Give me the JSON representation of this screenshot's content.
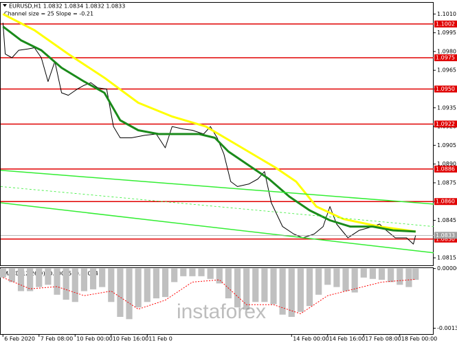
{
  "chart_data": [
    {
      "type": "line",
      "title": "EURUSD,H1  1.0832 1.0834 1.0832 1.0833",
      "subtitle": "Channel size = 25 Slope = -0.21",
      "watermark": "instaforex",
      "xlim": [
        -1,
        191
      ],
      "xticks": [
        {
          "value": 0,
          "label": "6 Feb 2020"
        },
        {
          "value": 16,
          "label": "7 Feb 08:00"
        },
        {
          "value": 32,
          "label": "10 Feb 00:00"
        },
        {
          "value": 48,
          "label": "10 Feb 16:00"
        },
        {
          "value": 64,
          "label": "11 Feb 0"
        },
        {
          "value": 128,
          "label": "14 Feb 00:00"
        },
        {
          "value": 144,
          "label": "14 Feb 16:00"
        },
        {
          "value": 160,
          "label": "17 Feb 08:00"
        },
        {
          "value": 176,
          "label": "18 Feb 00:00"
        }
      ],
      "ylim": [
        1.0809,
        1.1019
      ],
      "yticks": [
        {
          "value": 1.101,
          "label": "1.1010"
        },
        1.0995,
        {
          "value": 1.098,
          "label": "1.0980"
        },
        1.0965,
        {
          "value": 1.095,
          "label": "1.0950"
        },
        1.0935,
        {
          "value": 1.092,
          "label": "1.0920"
        },
        1.0905,
        {
          "value": 1.089,
          "label": "1.0890"
        },
        1.0875,
        {
          "value": 1.086,
          "label": "1.0860"
        },
        1.0845,
        {
          "value": 1.083,
          "label": "1.0830"
        },
        1.0815
      ],
      "series": [
        {
          "color": "#000000",
          "width": 1,
          "x": [
            0,
            1,
            4,
            7,
            11,
            14,
            17,
            20,
            23,
            26,
            29,
            33,
            36,
            39,
            42,
            46,
            49,
            52,
            57,
            63,
            68,
            72,
            75,
            80,
            84,
            89,
            92,
            95,
            98,
            101,
            104,
            109,
            113,
            116,
            119,
            124,
            129,
            133,
            138,
            142,
            145,
            148,
            153,
            158,
            164,
            167,
            170,
            174,
            179,
            182,
            183
          ],
          "values": [
            1.1003,
            1.0978,
            1.0975,
            1.0981,
            1.0982,
            1.0983,
            1.0975,
            1.0956,
            1.0972,
            1.0947,
            1.0945,
            1.095,
            1.0953,
            1.0955,
            1.0951,
            1.095,
            1.092,
            1.0911,
            1.0911,
            1.0913,
            1.0914,
            1.0903,
            1.092,
            1.0918,
            1.0917,
            1.0914,
            1.092,
            1.0911,
            1.0898,
            1.0876,
            1.0872,
            1.0874,
            1.0878,
            1.0884,
            1.0859,
            1.084,
            1.0834,
            1.0831,
            1.0834,
            1.084,
            1.0856,
            1.0842,
            1.0831,
            1.0837,
            1.084,
            1.0842,
            1.0837,
            1.0831,
            1.0831,
            1.0826,
            1.0833
          ]
        },
        {
          "color": "#ffff00",
          "width": 3,
          "x": [
            0,
            14,
            29,
            45,
            60,
            75,
            90,
            106,
            121,
            130,
            139,
            151,
            167,
            183
          ],
          "values": [
            1.101,
            1.0997,
            1.0978,
            1.0959,
            1.0939,
            1.0928,
            1.092,
            1.0903,
            1.0887,
            1.0876,
            1.0856,
            1.0846,
            1.084,
            1.0836
          ]
        },
        {
          "color": "#1a8a1a",
          "width": 3,
          "x": [
            0,
            8,
            17,
            26,
            36,
            45,
            52,
            60,
            69,
            78,
            87,
            94,
            100,
            109,
            118,
            127,
            136,
            145,
            154,
            164,
            173,
            183
          ],
          "values": [
            1.1,
            1.0989,
            1.0981,
            1.0967,
            1.0956,
            1.0947,
            1.0925,
            1.0917,
            1.0914,
            1.0914,
            1.0914,
            1.0911,
            1.09,
            1.0889,
            1.0878,
            1.0864,
            1.0853,
            1.0845,
            1.084,
            1.084,
            1.0837,
            1.0836
          ]
        },
        {
          "color": "#33ee33",
          "width": 1.5,
          "x": [
            -1,
            191
          ],
          "values": [
            1.0885,
            1.0858
          ]
        },
        {
          "color": "#33ee33",
          "width": 0.8,
          "dash": "3 3",
          "x": [
            -1,
            191
          ],
          "values": [
            1.0872,
            1.084
          ]
        },
        {
          "color": "#33ee33",
          "width": 1.5,
          "x": [
            -1,
            191
          ],
          "values": [
            1.0859,
            1.0819
          ]
        }
      ],
      "levels": [
        1.1002,
        1.0975,
        {
          "value": 1.095,
          "label": "1.0950"
        },
        1.0922,
        1.0886,
        {
          "value": 1.086,
          "label": "1.0860"
        },
        {
          "value": 1.083,
          "label": "1.0830"
        }
      ],
      "level_color": "#e00000",
      "last_price": 1.0833,
      "last_price_color": "#a0a0a0"
    },
    {
      "type": "bar",
      "title": "MACD(12,26,9) -0.00025 -0.00024",
      "xlim": [
        -1,
        191
      ],
      "ylim": [
        -0.00145,
        1e-05
      ],
      "yticks": [
        {
          "value": 0,
          "label": "0.00000"
        },
        -0.00132
      ],
      "color": "#c0c0c0",
      "x": [
        0,
        4,
        8,
        12,
        16,
        20,
        24,
        28,
        32,
        36,
        40,
        44,
        48,
        52,
        56,
        60,
        64,
        68,
        72,
        76,
        80,
        84,
        88,
        92,
        96,
        100,
        104,
        108,
        112,
        116,
        120,
        124,
        128,
        132,
        136,
        140,
        144,
        148,
        152,
        156,
        160,
        164,
        168,
        172,
        176,
        180,
        183
      ],
      "values": [
        -0.0002,
        -0.0003,
        -0.0005,
        -0.0005,
        -0.00041,
        -0.00036,
        -0.00058,
        -0.00069,
        -0.00074,
        -0.0005,
        -0.00046,
        -0.00041,
        -0.00074,
        -0.00107,
        -0.00112,
        -0.00086,
        -0.00074,
        -0.00066,
        -0.00063,
        -0.0003,
        -0.00017,
        -0.00017,
        -0.00017,
        -0.00023,
        -0.00033,
        -0.00066,
        -0.00086,
        -0.00091,
        -0.00074,
        -0.00074,
        -0.00079,
        -0.00102,
        -0.00107,
        -0.00096,
        -0.00083,
        -0.00058,
        -0.00036,
        -0.00041,
        -0.0005,
        -0.00053,
        -0.0002,
        -0.00023,
        -0.00025,
        -0.0003,
        -0.00036,
        -0.00041,
        -0.00025
      ],
      "signal": {
        "color": "#ff0000",
        "x": [
          0,
          12,
          24,
          36,
          48,
          60,
          72,
          84,
          96,
          108,
          120,
          132,
          144,
          156,
          168,
          183
        ],
        "values": [
          -0.0002,
          -0.00045,
          -0.0004,
          -0.0006,
          -0.0005,
          -0.0009,
          -0.0007,
          -0.0003,
          -0.00025,
          -0.0008,
          -0.0008,
          -0.001,
          -0.0006,
          -0.00045,
          -0.0003,
          -0.00024
        ]
      }
    }
  ]
}
